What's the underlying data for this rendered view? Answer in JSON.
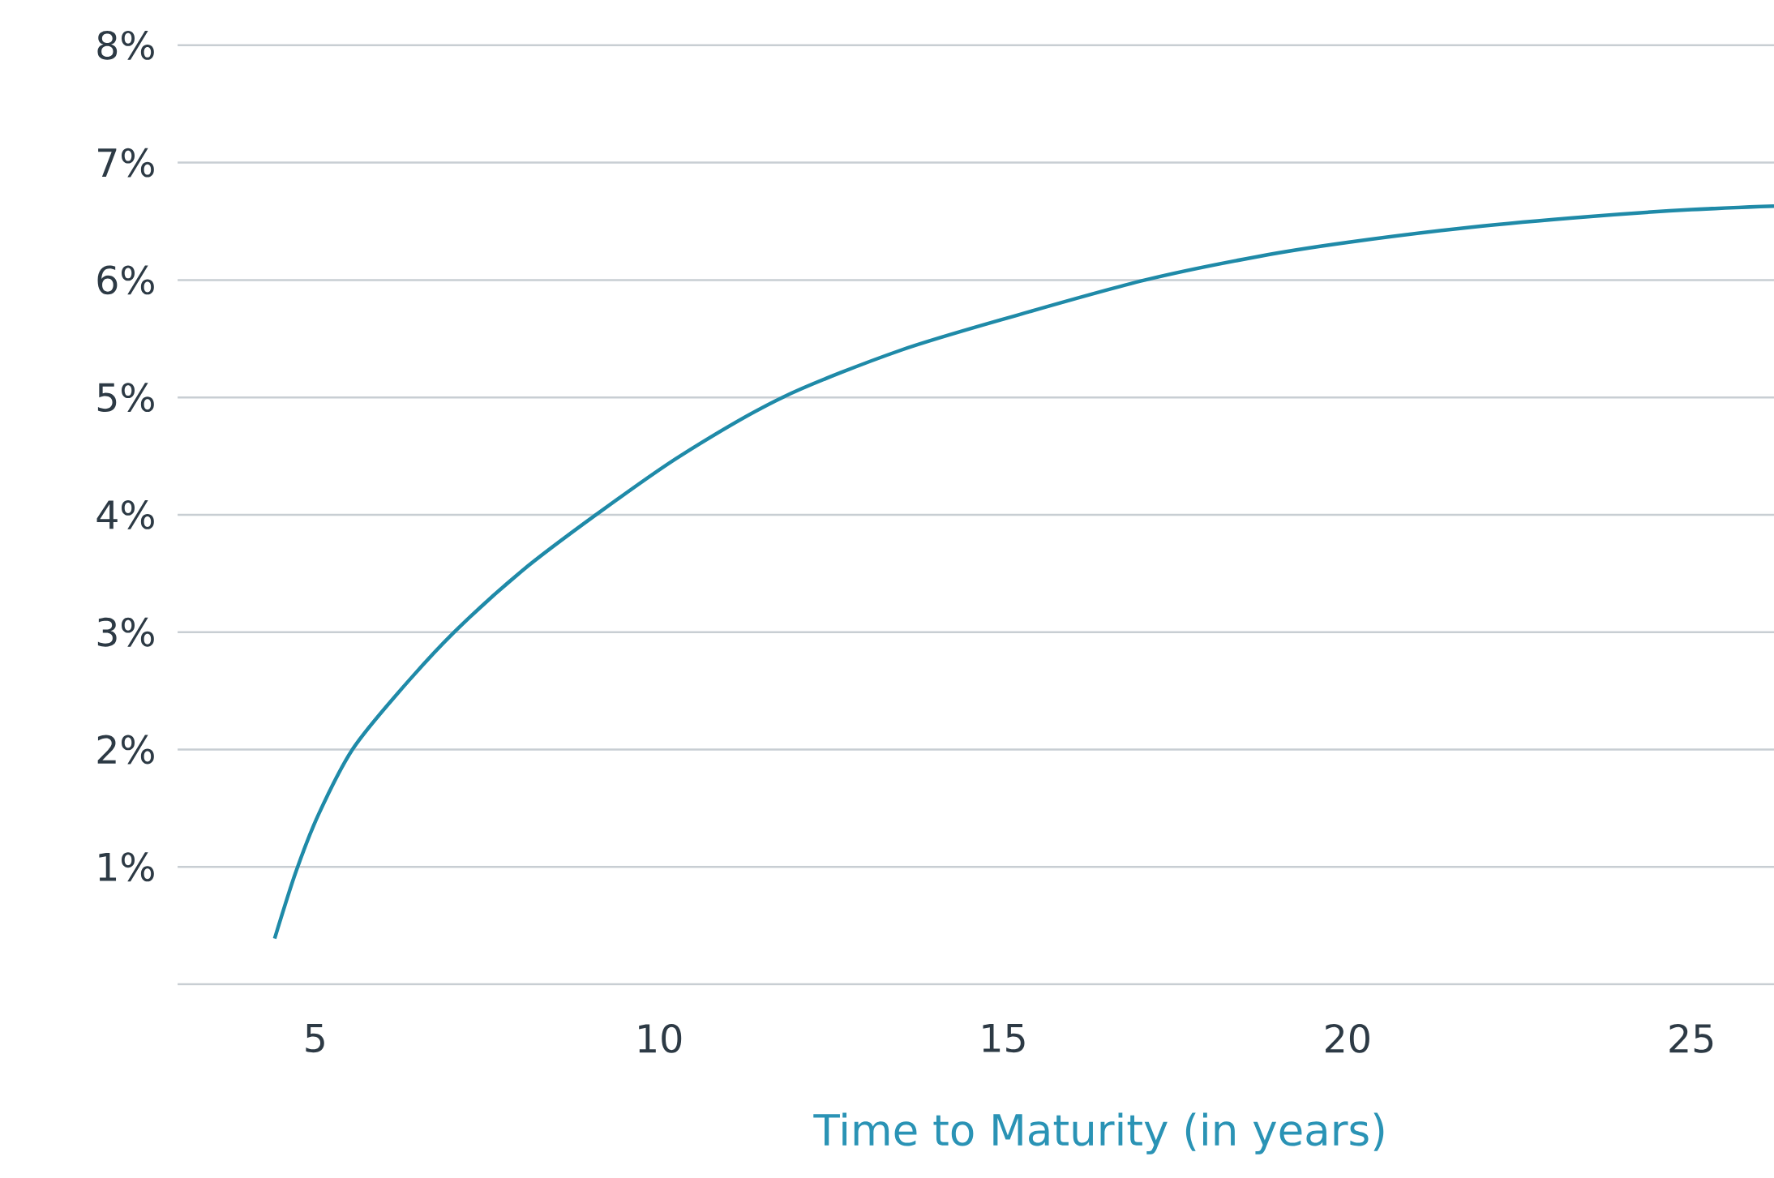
{
  "chart_data": {
    "type": "line",
    "xlabel": "Time to Maturity (in years)",
    "x": [
      4.41,
      4.72,
      5.05,
      5.54,
      6.2,
      7.02,
      8.0,
      9.08,
      10.3,
      11.79,
      13.5,
      15.2,
      17.06,
      18.7,
      20.0,
      21.8,
      23.5,
      25.0,
      26.2
    ],
    "series": [
      {
        "color": "#1f8aa8",
        "values": [
          0.39,
          0.96,
          1.45,
          2.0,
          2.48,
          3.0,
          3.52,
          4.0,
          4.5,
          5.0,
          5.4,
          5.7,
          6.0,
          6.2,
          6.32,
          6.45,
          6.54,
          6.6,
          6.63
        ]
      }
    ],
    "xlim": [
      3,
      26.2
    ],
    "ylim": [
      0,
      8
    ],
    "xticks": [
      5,
      10,
      15,
      20,
      25
    ],
    "yticks": [
      {
        "value": 0,
        "label": null
      },
      {
        "value": 1,
        "label": "1%"
      },
      {
        "value": 2,
        "label": "2%"
      },
      {
        "value": 3,
        "label": "3%"
      },
      {
        "value": 4,
        "label": "4%"
      },
      {
        "value": 5,
        "label": "5%"
      },
      {
        "value": 6,
        "label": "6%"
      },
      {
        "value": 7,
        "label": "7%"
      },
      {
        "value": 8,
        "label": "8%"
      }
    ],
    "grid": "y",
    "marker": "none",
    "line_style": "solid"
  }
}
